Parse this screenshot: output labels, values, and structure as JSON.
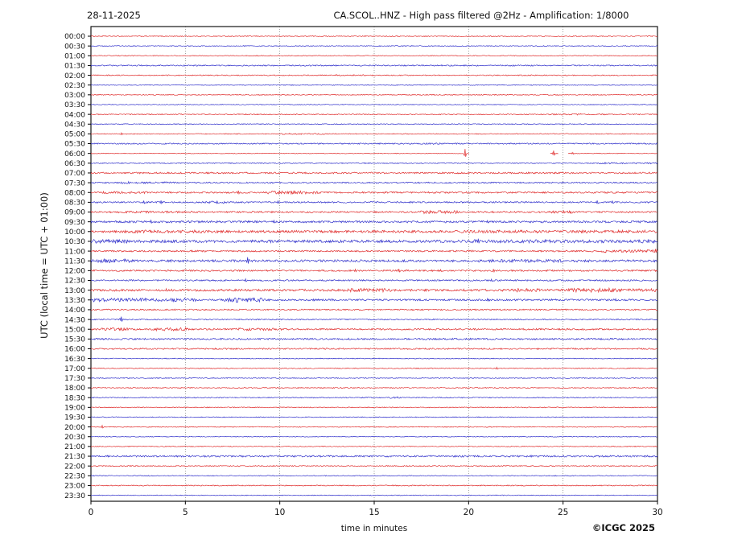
{
  "header": {
    "date": "28-11-2025",
    "title": "CA.SCOL..HNZ - High pass filtered @2Hz - Amplification: 1/8000"
  },
  "footer": {
    "copyright": "©ICGC 2025"
  },
  "chart_data": {
    "type": "line",
    "title": "CA.SCOL..HNZ - High pass filtered @2Hz - Amplification: 1/8000",
    "date": "28-11-2025",
    "station": "CA.SCOL..HNZ",
    "filter": "High pass filtered @2Hz",
    "amplification": "1/8000",
    "xlabel": "time in minutes",
    "ylabel": "UTC (local time = UTC + 01:00)",
    "xlim": [
      0,
      30
    ],
    "xticks": [
      0,
      5,
      10,
      15,
      20,
      25,
      30
    ],
    "grid_minutes": [
      5,
      10,
      15,
      20,
      25
    ],
    "minutes_per_row": 30,
    "grid": true,
    "legend_position": "none",
    "colors": {
      "red": "#e03030",
      "blue": "#3535cc"
    },
    "rows": [
      {
        "label": "00:00",
        "color": "red",
        "base": 0.5,
        "bursts": [],
        "spikes": [],
        "gaps": []
      },
      {
        "label": "00:30",
        "color": "blue",
        "base": 0.5,
        "bursts": [],
        "spikes": [],
        "gaps": []
      },
      {
        "label": "01:00",
        "color": "red",
        "base": 0.5,
        "bursts": [],
        "spikes": [],
        "gaps": []
      },
      {
        "label": "01:30",
        "color": "blue",
        "base": 0.75,
        "bursts": [],
        "spikes": [],
        "gaps": []
      },
      {
        "label": "02:00",
        "color": "red",
        "base": 0.6,
        "bursts": [
          [
            13,
            14.5,
            0.9
          ]
        ],
        "spikes": [],
        "gaps": []
      },
      {
        "label": "02:30",
        "color": "blue",
        "base": 0.5,
        "bursts": [],
        "spikes": [],
        "gaps": []
      },
      {
        "label": "03:00",
        "color": "red",
        "base": 0.55,
        "bursts": [],
        "spikes": [],
        "gaps": []
      },
      {
        "label": "03:30",
        "color": "blue",
        "base": 0.45,
        "bursts": [],
        "spikes": [],
        "gaps": []
      },
      {
        "label": "04:00",
        "color": "red",
        "base": 0.6,
        "bursts": [
          [
            24.5,
            27.5,
            0.9
          ]
        ],
        "spikes": [],
        "gaps": []
      },
      {
        "label": "04:30",
        "color": "blue",
        "base": 0.5,
        "bursts": [],
        "spikes": [],
        "gaps": []
      },
      {
        "label": "05:00",
        "color": "red",
        "base": 0.5,
        "bursts": [
          [
            10,
            12.5,
            0.8
          ]
        ],
        "spikes": [
          [
            1.6,
            1.3
          ]
        ],
        "gaps": []
      },
      {
        "label": "05:30",
        "color": "blue",
        "base": 0.75,
        "bursts": [
          [
            17.5,
            18.6,
            1.0
          ]
        ],
        "spikes": [],
        "gaps": []
      },
      {
        "label": "06:00",
        "color": "red",
        "base": 0.4,
        "bursts": [],
        "spikes": [
          [
            19.8,
            5.5
          ],
          [
            24.5,
            3.5
          ],
          [
            25.5,
            1.2
          ]
        ],
        "gaps": [
          [
            20.05,
            24.3
          ],
          [
            24.75,
            25.25
          ]
        ]
      },
      {
        "label": "06:30",
        "color": "blue",
        "base": 0.6,
        "bursts": [
          [
            26.5,
            30,
            0.9
          ]
        ],
        "spikes": [],
        "gaps": []
      },
      {
        "label": "07:00",
        "color": "red",
        "base": 0.95,
        "bursts": [],
        "spikes": [],
        "gaps": []
      },
      {
        "label": "07:30",
        "color": "blue",
        "base": 0.85,
        "bursts": [
          [
            1.5,
            4.5,
            1.2
          ]
        ],
        "spikes": [
          [
            2.0,
            1.5
          ]
        ],
        "gaps": []
      },
      {
        "label": "08:00",
        "color": "red",
        "base": 1.0,
        "bursts": [
          [
            0.5,
            3,
            1.4
          ],
          [
            9.4,
            12,
            1.9
          ]
        ],
        "spikes": [
          [
            7.8,
            2.2
          ]
        ],
        "gaps": []
      },
      {
        "label": "08:30",
        "color": "blue",
        "base": 0.9,
        "bursts": [
          [
            6,
            7,
            1.6
          ]
        ],
        "spikes": [
          [
            2.8,
            2.0
          ],
          [
            3.7,
            2.2
          ],
          [
            9.9,
            1.8
          ],
          [
            26.8,
            2.2
          ],
          [
            27.6,
            1.6
          ]
        ],
        "gaps": []
      },
      {
        "label": "09:00",
        "color": "red",
        "base": 1.0,
        "bursts": [
          [
            1.5,
            5.5,
            1.3
          ],
          [
            17.5,
            19.4,
            2.0
          ],
          [
            24.3,
            25.6,
            1.5
          ]
        ],
        "spikes": [],
        "gaps": []
      },
      {
        "label": "09:30",
        "color": "blue",
        "base": 1.25,
        "bursts": [],
        "spikes": [
          [
            3.2,
            2.0
          ],
          [
            9.7,
            1.8
          ],
          [
            21.0,
            1.6
          ]
        ],
        "gaps": []
      },
      {
        "label": "10:00",
        "color": "red",
        "base": 1.5,
        "bursts": [
          [
            2,
            6,
            1.9
          ],
          [
            19,
            24,
            1.8
          ],
          [
            26,
            29.5,
            1.8
          ]
        ],
        "spikes": [],
        "gaps": []
      },
      {
        "label": "10:30",
        "color": "blue",
        "base": 1.7,
        "bursts": [
          [
            0,
            2,
            2.3
          ],
          [
            20,
            30,
            2.0
          ]
        ],
        "spikes": [
          [
            20.5,
            3.2
          ],
          [
            29.5,
            2.5
          ]
        ],
        "gaps": []
      },
      {
        "label": "11:00",
        "color": "red",
        "base": 1.0,
        "bursts": [
          [
            27,
            30,
            1.8
          ]
        ],
        "spikes": [
          [
            29.9,
            2.6
          ]
        ],
        "gaps": []
      },
      {
        "label": "11:30",
        "color": "blue",
        "base": 1.4,
        "bursts": [
          [
            0,
            2,
            2.4
          ],
          [
            20.5,
            25,
            1.9
          ]
        ],
        "spikes": [
          [
            8.3,
            4.5
          ]
        ],
        "gaps": []
      },
      {
        "label": "12:00",
        "color": "red",
        "base": 1.0,
        "bursts": [],
        "spikes": [
          [
            14.0,
            1.8
          ],
          [
            16.3,
            2.2
          ],
          [
            18.5,
            1.4
          ],
          [
            21.3,
            2.0
          ]
        ],
        "gaps": []
      },
      {
        "label": "12:30",
        "color": "blue",
        "base": 0.9,
        "bursts": [],
        "spikes": [
          [
            8.2,
            1.9
          ],
          [
            21.2,
            1.5
          ]
        ],
        "gaps": []
      },
      {
        "label": "13:00",
        "color": "red",
        "base": 1.35,
        "bursts": [
          [
            13.5,
            16,
            2.2
          ],
          [
            22.4,
            24,
            2.2
          ],
          [
            25.4,
            28,
            2.6
          ],
          [
            28.5,
            30,
            2.0
          ]
        ],
        "spikes": [
          [
            4.0,
            1.8
          ]
        ],
        "gaps": []
      },
      {
        "label": "13:30",
        "color": "blue",
        "base": 1.15,
        "bursts": [
          [
            0,
            5.5,
            2.2
          ],
          [
            7.2,
            9,
            3.0
          ]
        ],
        "spikes": [
          [
            21.0,
            1.8
          ],
          [
            27.8,
            1.6
          ]
        ],
        "gaps": []
      },
      {
        "label": "14:00",
        "color": "red",
        "base": 0.8,
        "bursts": [],
        "spikes": [],
        "gaps": []
      },
      {
        "label": "14:30",
        "color": "blue",
        "base": 0.7,
        "bursts": [],
        "spikes": [
          [
            1.6,
            3.5
          ]
        ],
        "gaps": []
      },
      {
        "label": "15:00",
        "color": "red",
        "base": 1.0,
        "bursts": [
          [
            0.6,
            2,
            1.7
          ],
          [
            3.4,
            5,
            2.0
          ],
          [
            7.8,
            10,
            1.7
          ]
        ],
        "spikes": [],
        "gaps": []
      },
      {
        "label": "15:30",
        "color": "blue",
        "base": 1.0,
        "bursts": [],
        "spikes": [],
        "gaps": []
      },
      {
        "label": "16:00",
        "color": "red",
        "base": 0.85,
        "bursts": [],
        "spikes": [],
        "gaps": []
      },
      {
        "label": "16:30",
        "color": "blue",
        "base": 0.5,
        "bursts": [],
        "spikes": [],
        "gaps": []
      },
      {
        "label": "17:00",
        "color": "red",
        "base": 0.55,
        "bursts": [],
        "spikes": [
          [
            21.5,
            1.4
          ]
        ],
        "gaps": []
      },
      {
        "label": "17:30",
        "color": "blue",
        "base": 0.5,
        "bursts": [],
        "spikes": [],
        "gaps": []
      },
      {
        "label": "18:00",
        "color": "red",
        "base": 0.55,
        "bursts": [],
        "spikes": [],
        "gaps": []
      },
      {
        "label": "18:30",
        "color": "blue",
        "base": 0.6,
        "bursts": [
          [
            15.9,
            16.6,
            1.3
          ]
        ],
        "spikes": [],
        "gaps": []
      },
      {
        "label": "19:00",
        "color": "red",
        "base": 0.55,
        "bursts": [],
        "spikes": [],
        "gaps": []
      },
      {
        "label": "19:30",
        "color": "blue",
        "base": 0.5,
        "bursts": [],
        "spikes": [],
        "gaps": []
      },
      {
        "label": "20:00",
        "color": "red",
        "base": 0.5,
        "bursts": [],
        "spikes": [
          [
            0.6,
            1.8
          ]
        ],
        "gaps": []
      },
      {
        "label": "20:30",
        "color": "blue",
        "base": 0.45,
        "bursts": [],
        "spikes": [],
        "gaps": []
      },
      {
        "label": "21:00",
        "color": "red",
        "base": 0.5,
        "bursts": [],
        "spikes": [],
        "gaps": []
      },
      {
        "label": "21:30",
        "color": "blue",
        "base": 1.05,
        "bursts": [],
        "spikes": [
          [
            23.3,
            1.3
          ]
        ],
        "gaps": []
      },
      {
        "label": "22:00",
        "color": "red",
        "base": 0.6,
        "bursts": [],
        "spikes": [],
        "gaps": []
      },
      {
        "label": "22:30",
        "color": "blue",
        "base": 0.5,
        "bursts": [],
        "spikes": [],
        "gaps": []
      },
      {
        "label": "23:00",
        "color": "red",
        "base": 0.6,
        "bursts": [],
        "spikes": [],
        "gaps": []
      },
      {
        "label": "23:30",
        "color": "blue",
        "base": 0.45,
        "bursts": [],
        "spikes": [],
        "gaps": []
      }
    ]
  }
}
